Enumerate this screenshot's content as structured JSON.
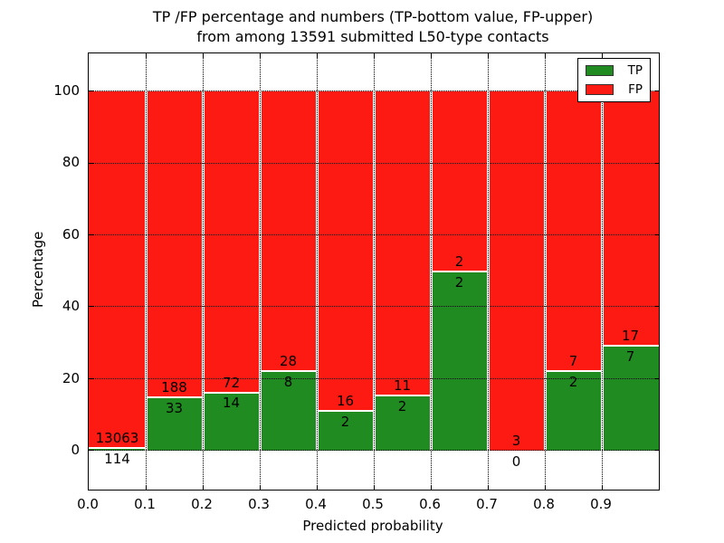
{
  "title": {
    "line1": "TP /FP percentage and numbers (TP-bottom value, FP-upper)",
    "line2": "from among 13591 submitted L50-type contacts"
  },
  "axes": {
    "xlabel": "Predicted probability",
    "ylabel": "Percentage",
    "y_tick_labels": [
      "0",
      "20",
      "40",
      "60",
      "80",
      "100"
    ],
    "y_tick_values": [
      0,
      20,
      40,
      60,
      80,
      100
    ],
    "x_tick_labels": [
      "0.0",
      "0.1",
      "0.2",
      "0.3",
      "0.4",
      "0.5",
      "0.6",
      "0.7",
      "0.8",
      "0.9"
    ],
    "x_tick_values": [
      0.0,
      0.1,
      0.2,
      0.3,
      0.4,
      0.5,
      0.6,
      0.7,
      0.8,
      0.9
    ]
  },
  "legend": {
    "items": [
      {
        "label": "TP",
        "color": "#208b20"
      },
      {
        "label": "FP",
        "color": "#fc1a13"
      }
    ]
  },
  "colors": {
    "tp_green": "#208b20",
    "fp_red": "#fc1a13",
    "grid": "#000000",
    "background": "#ffffff"
  },
  "chart_data": {
    "type": "bar",
    "stacked": true,
    "normalized": "each bin scaled to 100%",
    "title": "TP /FP percentage and numbers (TP-bottom value, FP-upper) from among 13591 submitted L50-type contacts",
    "xlabel": "Predicted probability",
    "ylabel": "Percentage",
    "total_contacts": 13591,
    "categories": [
      "0.0-0.1",
      "0.1-0.2",
      "0.2-0.3",
      "0.3-0.4",
      "0.4-0.5",
      "0.5-0.6",
      "0.6-0.7",
      "0.7-0.8",
      "0.8-0.9",
      "0.9-1.0"
    ],
    "x_bin_edges": [
      0.0,
      0.1,
      0.2,
      0.3,
      0.4,
      0.5,
      0.6,
      0.7,
      0.8,
      0.9,
      1.0
    ],
    "series": [
      {
        "name": "TP",
        "color": "#208b20",
        "position": "bottom",
        "counts": [
          114,
          33,
          14,
          8,
          2,
          2,
          2,
          0,
          2,
          7
        ]
      },
      {
        "name": "FP",
        "color": "#fc1a13",
        "position": "top",
        "counts": [
          13063,
          188,
          72,
          28,
          16,
          11,
          2,
          3,
          7,
          17
        ]
      }
    ],
    "bar_total_height_percent": 100,
    "xlim": [
      0.0,
      1.0
    ],
    "ylim": [
      -10.8,
      110.6
    ],
    "data_ylim": [
      0,
      100
    ],
    "grid": true,
    "grid_style": "dotted",
    "legend_position": "upper right"
  }
}
